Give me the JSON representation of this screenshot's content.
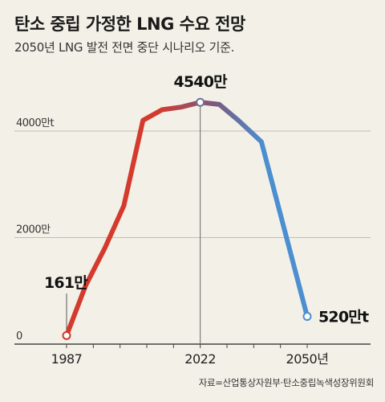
{
  "header": {
    "title": "탄소 중립 가정한 LNG 수요 전망",
    "subtitle": "2050년 LNG 발전 전면 중단 시나리오 기준."
  },
  "source": "자료=산업통상자원부·탄소중립녹색성장위원회",
  "chart_data": {
    "type": "line",
    "title": "탄소 중립 가정한 LNG 수요 전망",
    "subtitle": "2050년 LNG 발전 전면 중단 시나리오 기준.",
    "xlabel": "",
    "ylabel": "",
    "unit": "t",
    "x": [
      1987,
      1992,
      1997,
      2002,
      2007,
      2012,
      2017,
      2022,
      2027,
      2032,
      2038,
      2050
    ],
    "series": [
      {
        "values": [
          161,
          1100,
          1800,
          2600,
          4200,
          4400,
          4450,
          4540,
          4500,
          4200,
          3800,
          520
        ]
      }
    ],
    "ylim": [
      0,
      4900
    ],
    "y_ticks": [
      {
        "value": 0,
        "label": "0"
      },
      {
        "value": 2000,
        "label": "2000만"
      },
      {
        "value": 4000,
        "label": "4000만t"
      }
    ],
    "x_ticks": [
      {
        "value": 1987,
        "label": "1987"
      },
      {
        "value": 2022,
        "label": "2022"
      },
      {
        "value": 2050,
        "label": "2050년"
      }
    ],
    "annotations": [
      {
        "x": 1987,
        "y": 161,
        "label": "161만"
      },
      {
        "x": 2022,
        "y": 4540,
        "label": "4540만"
      },
      {
        "x": 2050,
        "y": 520,
        "label": "520만t"
      }
    ],
    "grid": true,
    "colors": {
      "start": "#d43a2e",
      "mid": "#7a5a80",
      "end": "#4b8fd1",
      "grid": "#bdbdb6",
      "axis": "#444444"
    }
  }
}
